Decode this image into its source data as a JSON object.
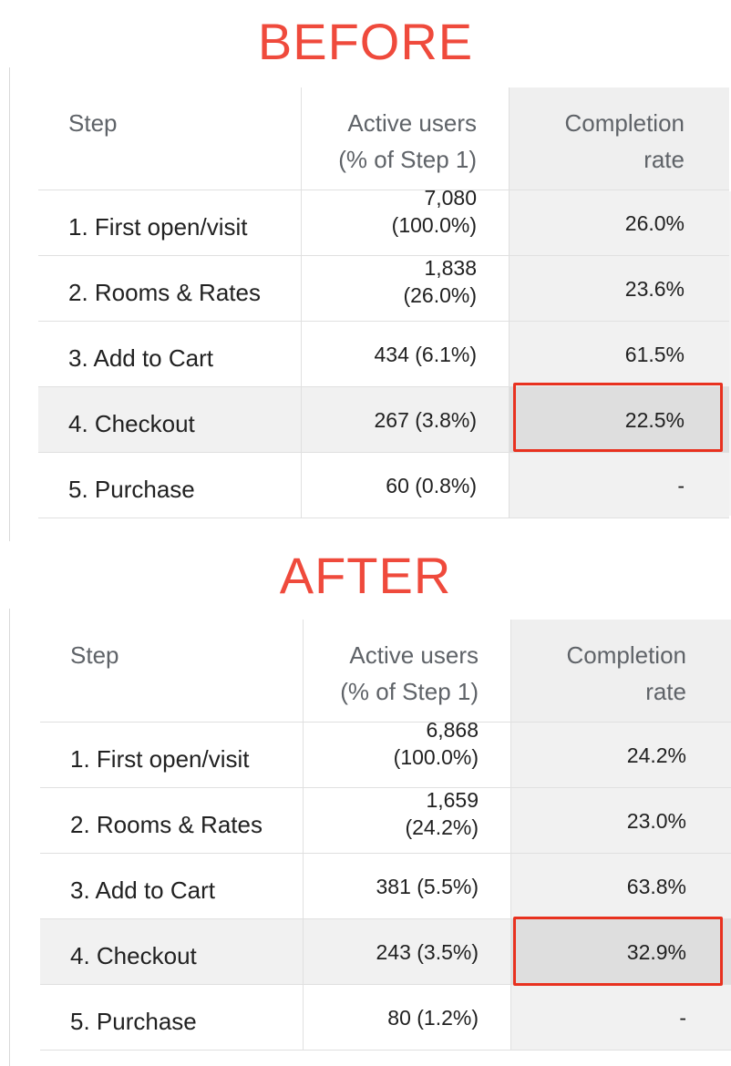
{
  "before": {
    "heading": "BEFORE",
    "columns": {
      "step": "Step",
      "users_l1": "Active users",
      "users_l2": "(% of Step 1)",
      "comp_l1": "Completion",
      "comp_l2": "rate"
    },
    "rows": [
      {
        "step": "1. First open/visit",
        "users_l1": "7,080",
        "users_l2": "(100.0%)",
        "completion": "26.0%"
      },
      {
        "step": "2. Rooms & Rates",
        "users_l1": "1,838",
        "users_l2": "(26.0%)",
        "completion": "23.6%"
      },
      {
        "step": "3. Add to Cart",
        "users": "434 (6.1%)",
        "completion": "61.5%"
      },
      {
        "step": "4. Checkout",
        "users": "267 (3.8%)",
        "completion": "22.5%"
      },
      {
        "step": "5. Purchase",
        "users": "60 (0.8%)",
        "completion": "-"
      }
    ]
  },
  "after": {
    "heading": "AFTER",
    "columns": {
      "step": "Step",
      "users_l1": "Active users",
      "users_l2": "(% of Step 1)",
      "comp_l1": "Completion",
      "comp_l2": "rate"
    },
    "rows": [
      {
        "step": "1. First open/visit",
        "users_l1": "6,868",
        "users_l2": "(100.0%)",
        "completion": "24.2%"
      },
      {
        "step": "2. Rooms & Rates",
        "users_l1": "1,659",
        "users_l2": "(24.2%)",
        "completion": "23.0%"
      },
      {
        "step": "3. Add to Cart",
        "users": "381 (5.5%)",
        "completion": "63.8%"
      },
      {
        "step": "4. Checkout",
        "users": "243 (3.5%)",
        "completion": "32.9%"
      },
      {
        "step": "5. Purchase",
        "users": "80 (1.2%)",
        "completion": "-"
      }
    ]
  },
  "colors": {
    "heading": "#ef4a3c",
    "highlight_box": "#e8311f"
  }
}
